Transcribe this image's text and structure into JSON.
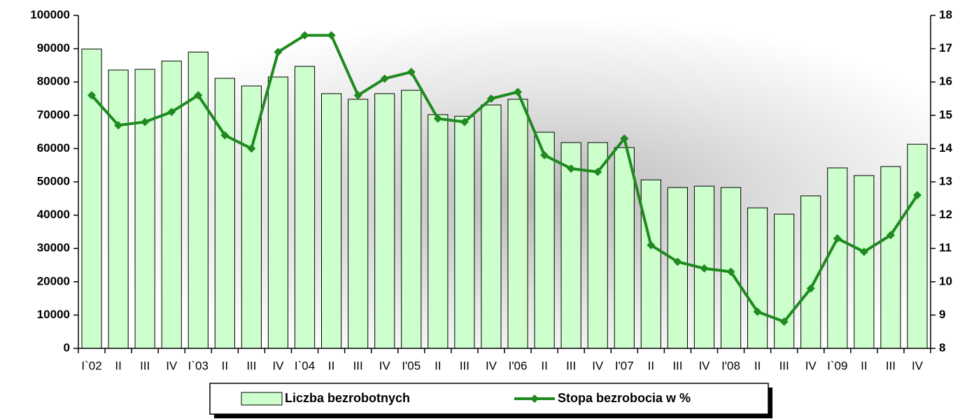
{
  "chart_data": {
    "type": "bar-line",
    "categories": [
      "I`02",
      "II",
      "III",
      "IV",
      "I`03",
      "II",
      "III",
      "IV",
      "I`04",
      "II",
      "III",
      "IV",
      "I'05",
      "II",
      "III",
      "IV",
      "I'06",
      "II",
      "III",
      "IV",
      "I'07",
      "II",
      "III",
      "IV",
      "I'08",
      "II",
      "III",
      "IV",
      "I`09",
      "II",
      "III",
      "IV"
    ],
    "series": [
      {
        "name": "Liczba bezrobotnych",
        "type": "bar",
        "axis": "y",
        "color": "#ccffcc",
        "values": [
          89900,
          83600,
          83800,
          86300,
          89000,
          81100,
          78800,
          81500,
          84700,
          76500,
          74800,
          76500,
          77500,
          70200,
          69700,
          73100,
          74800,
          64900,
          61800,
          61800,
          60300,
          50600,
          48300,
          48700,
          48300,
          42200,
          40300,
          45800,
          54200,
          51900,
          54600,
          61300
        ]
      },
      {
        "name": "Stopa bezrobocia w %",
        "type": "line",
        "axis": "y2",
        "color": "#1f8a1f",
        "values": [
          15.6,
          14.7,
          14.8,
          15.1,
          15.6,
          14.4,
          14.0,
          16.9,
          17.4,
          17.4,
          15.6,
          16.1,
          16.3,
          14.9,
          14.8,
          15.5,
          15.7,
          13.8,
          13.4,
          13.3,
          14.3,
          11.1,
          10.6,
          10.4,
          10.3,
          9.1,
          8.8,
          9.8,
          11.3,
          10.9,
          11.4,
          12.6
        ]
      }
    ],
    "ylim": [
      0,
      100000
    ],
    "yticks": [
      0,
      10000,
      20000,
      30000,
      40000,
      50000,
      60000,
      70000,
      80000,
      90000,
      100000
    ],
    "y2lim": [
      8,
      18
    ],
    "y2ticks": [
      8,
      9,
      10,
      11,
      12,
      13,
      14,
      15,
      16,
      17,
      18
    ],
    "legend": "bottom"
  }
}
